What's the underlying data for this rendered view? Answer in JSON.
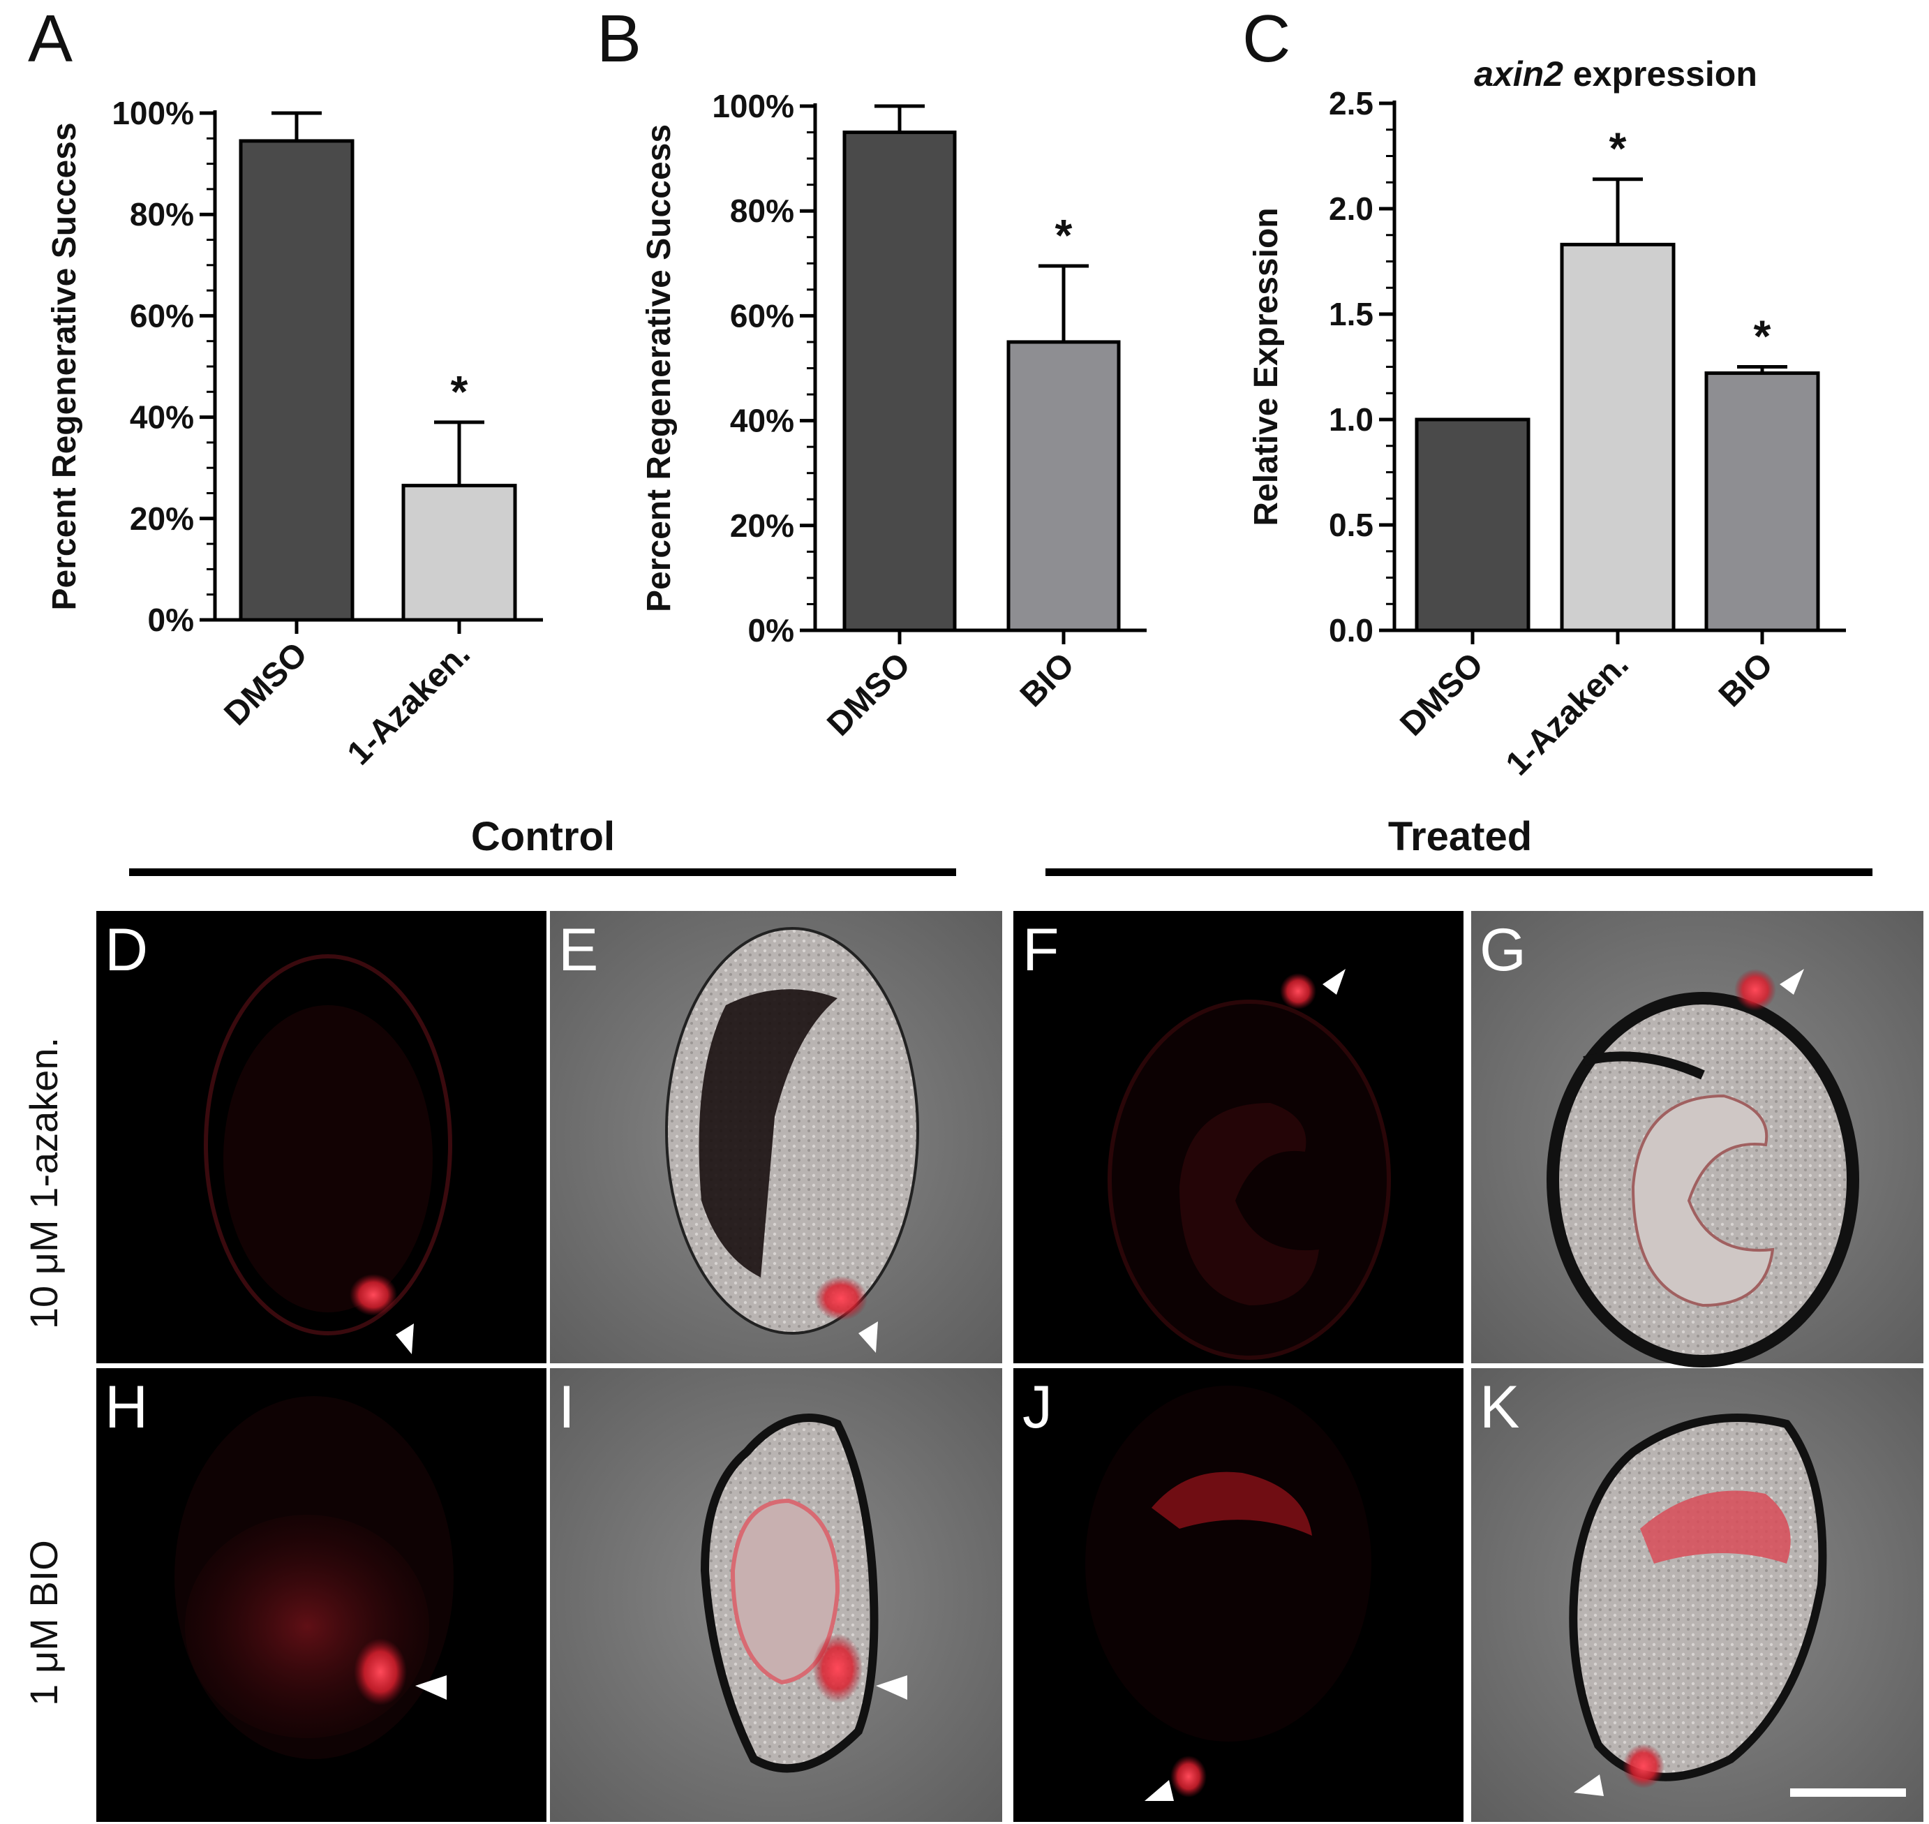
{
  "chart_data": [
    {
      "panel": "A",
      "type": "bar",
      "categories": [
        "DMSO",
        "1-Azaken."
      ],
      "values": [
        94.5,
        26.5
      ],
      "errors": [
        5.5,
        12.5
      ],
      "significance": [
        "",
        "*"
      ],
      "ylabel": "Percent Regenerative Success",
      "ylim": [
        0,
        100
      ],
      "yticks": [
        0,
        20,
        40,
        60,
        80,
        100
      ],
      "ytick_labels": [
        "0%",
        "20%",
        "40%",
        "60%",
        "80%",
        "100%"
      ],
      "colors": [
        "#4a4a4a",
        "#cfcfcf"
      ]
    },
    {
      "panel": "B",
      "type": "bar",
      "categories": [
        "DMSO",
        "BIO"
      ],
      "values": [
        95,
        55
      ],
      "errors": [
        5,
        14.5
      ],
      "significance": [
        "",
        "*"
      ],
      "ylabel": "Percent Regenerative Success",
      "ylim": [
        0,
        100
      ],
      "yticks": [
        0,
        20,
        40,
        60,
        80,
        100
      ],
      "ytick_labels": [
        "0%",
        "20%",
        "40%",
        "60%",
        "80%",
        "100%"
      ],
      "colors": [
        "#4a4a4a",
        "#8e8e92"
      ]
    },
    {
      "panel": "C",
      "type": "bar",
      "title_italic": "axin2",
      "title_rest": " expression",
      "categories": [
        "DMSO",
        "1-Azaken.",
        "BIO"
      ],
      "values": [
        1.0,
        1.83,
        1.22
      ],
      "errors": [
        0,
        0.31,
        0.03
      ],
      "significance": [
        "",
        "*",
        "*"
      ],
      "ylabel": "Relative Expression",
      "ylim": [
        0,
        2.5
      ],
      "yticks": [
        0,
        0.5,
        1.0,
        1.5,
        2.0,
        2.5
      ],
      "ytick_labels": [
        "0.0",
        "0.5",
        "1.0",
        "1.5",
        "2.0",
        "2.5"
      ],
      "colors": [
        "#4a4a4a",
        "#cfcfcf",
        "#8e8e92"
      ]
    }
  ],
  "images": {
    "group_labels": [
      "Control",
      "Treated"
    ],
    "row_labels": [
      "10 μM 1-azaken.",
      "1 μM BIO"
    ],
    "panels": [
      "D",
      "E",
      "F",
      "G",
      "H",
      "I",
      "J",
      "K"
    ]
  }
}
